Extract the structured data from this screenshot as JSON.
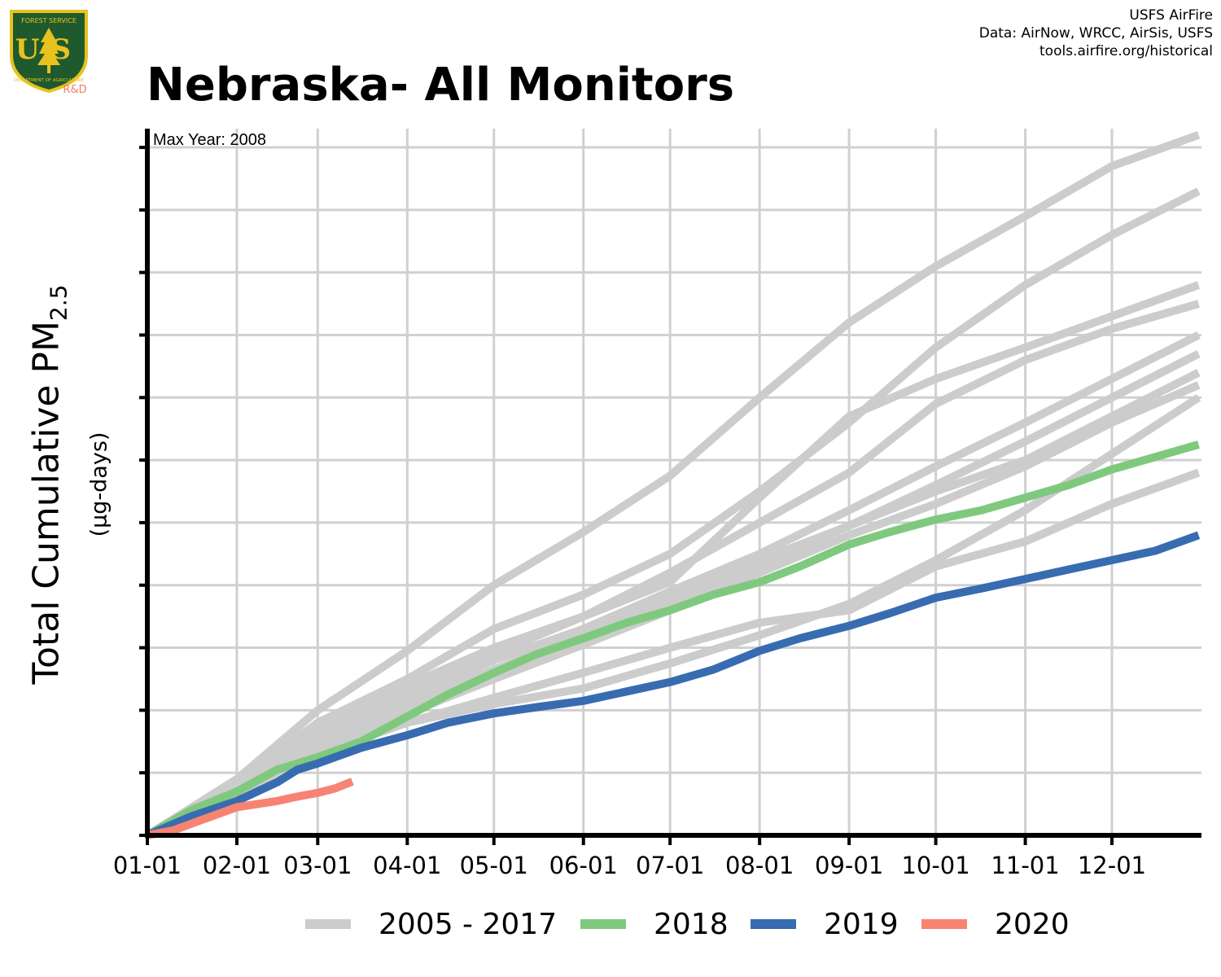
{
  "title": "Nebraska- All Monitors",
  "credits": [
    "USFS AirFire",
    "Data: AirNow, WRCC, AirSis, USFS",
    "tools.airfire.org/historical"
  ],
  "logo": {
    "text_top": "FOREST SERVICE",
    "letters": "US",
    "text_bottom": "DEPARTMENT OF AGRICULTURE",
    "suffix": "R&D",
    "colors": {
      "shield": "#1f5a2e",
      "border": "#e8c21e",
      "suffix": "#f47b65"
    }
  },
  "y_title": {
    "main_prefix": "Total Cumulative PM",
    "main_sub": "2.5",
    "unit": "(µg-days)"
  },
  "annotation": {
    "label": "Max Year: 2008"
  },
  "legend": [
    {
      "label": "2005 - 2017",
      "color": "#cccccc"
    },
    {
      "label": "2018",
      "color": "#7fc97f"
    },
    {
      "label": "2019",
      "color": "#386cb0"
    },
    {
      "label": "2020",
      "color": "#f88372"
    }
  ],
  "chart_data": {
    "type": "line",
    "xlabel": "",
    "ylabel": "Total Cumulative PM2.5 (µg-days)",
    "x_unit": "day of year",
    "xlim": [
      1,
      366
    ],
    "ylim": [
      0,
      11.3
    ],
    "x_ticks": [
      {
        "label": "01-01",
        "x": 1
      },
      {
        "label": "02-01",
        "x": 32
      },
      {
        "label": "03-01",
        "x": 60
      },
      {
        "label": "04-01",
        "x": 91
      },
      {
        "label": "05-01",
        "x": 121
      },
      {
        "label": "06-01",
        "x": 152
      },
      {
        "label": "07-01",
        "x": 182
      },
      {
        "label": "08-01",
        "x": 213
      },
      {
        "label": "09-01",
        "x": 244
      },
      {
        "label": "10-01",
        "x": 274
      },
      {
        "label": "11-01",
        "x": 305
      },
      {
        "label": "12-01",
        "x": 335
      }
    ],
    "y_ticks": [
      0,
      1,
      2,
      3,
      4,
      5,
      6,
      7,
      8,
      9,
      10,
      11
    ],
    "y_tick_labels_shown": false,
    "grid": true,
    "legend_position": "bottom",
    "series": [
      {
        "name": "2005 - 2017",
        "group": "historical",
        "color": "#cccccc",
        "points": [
          [
            1,
            0
          ],
          [
            32,
            0.9
          ],
          [
            60,
            2.0
          ],
          [
            91,
            2.95
          ],
          [
            121,
            4.0
          ],
          [
            152,
            4.85
          ],
          [
            182,
            5.75
          ],
          [
            213,
            7.0
          ],
          [
            244,
            8.2
          ],
          [
            274,
            9.1
          ],
          [
            305,
            9.9
          ],
          [
            335,
            10.7
          ],
          [
            365,
            11.2
          ]
        ]
      },
      {
        "name": "2005 - 2017",
        "group": "historical",
        "color": "#cccccc",
        "points": [
          [
            1,
            0
          ],
          [
            32,
            0.85
          ],
          [
            60,
            1.8
          ],
          [
            91,
            2.5
          ],
          [
            121,
            3.3
          ],
          [
            152,
            3.85
          ],
          [
            182,
            4.5
          ],
          [
            213,
            5.5
          ],
          [
            244,
            6.6
          ],
          [
            274,
            7.8
          ],
          [
            305,
            8.8
          ],
          [
            335,
            9.6
          ],
          [
            365,
            10.3
          ]
        ]
      },
      {
        "name": "2005 - 2017",
        "group": "historical",
        "color": "#cccccc",
        "points": [
          [
            1,
            0
          ],
          [
            32,
            0.85
          ],
          [
            60,
            1.7
          ],
          [
            91,
            2.4
          ],
          [
            121,
            3.0
          ],
          [
            152,
            3.5
          ],
          [
            182,
            4.05
          ],
          [
            213,
            5.4
          ],
          [
            244,
            6.7
          ],
          [
            274,
            7.3
          ],
          [
            305,
            7.8
          ],
          [
            335,
            8.3
          ],
          [
            365,
            8.8
          ]
        ]
      },
      {
        "name": "2005 - 2017",
        "group": "historical",
        "color": "#cccccc",
        "points": [
          [
            1,
            0
          ],
          [
            32,
            0.85
          ],
          [
            60,
            1.65
          ],
          [
            91,
            2.3
          ],
          [
            121,
            2.9
          ],
          [
            152,
            3.5
          ],
          [
            182,
            4.2
          ],
          [
            213,
            5.0
          ],
          [
            244,
            5.8
          ],
          [
            274,
            6.9
          ],
          [
            305,
            7.6
          ],
          [
            335,
            8.1
          ],
          [
            365,
            8.5
          ]
        ]
      },
      {
        "name": "2005 - 2017",
        "group": "historical",
        "color": "#cccccc",
        "points": [
          [
            1,
            0
          ],
          [
            32,
            0.8
          ],
          [
            60,
            1.6
          ],
          [
            91,
            2.2
          ],
          [
            121,
            2.8
          ],
          [
            152,
            3.3
          ],
          [
            182,
            3.9
          ],
          [
            213,
            4.5
          ],
          [
            244,
            5.2
          ],
          [
            274,
            5.9
          ],
          [
            305,
            6.6
          ],
          [
            335,
            7.3
          ],
          [
            365,
            8.0
          ]
        ]
      },
      {
        "name": "2005 - 2017",
        "group": "historical",
        "color": "#cccccc",
        "points": [
          [
            1,
            0
          ],
          [
            32,
            0.8
          ],
          [
            60,
            1.55
          ],
          [
            91,
            2.1
          ],
          [
            121,
            2.65
          ],
          [
            152,
            3.2
          ],
          [
            182,
            3.8
          ],
          [
            213,
            4.4
          ],
          [
            244,
            4.95
          ],
          [
            274,
            5.6
          ],
          [
            305,
            6.3
          ],
          [
            335,
            7.0
          ],
          [
            365,
            7.7
          ]
        ]
      },
      {
        "name": "2005 - 2017",
        "group": "historical",
        "color": "#cccccc",
        "points": [
          [
            1,
            0
          ],
          [
            32,
            0.7
          ],
          [
            60,
            1.45
          ],
          [
            91,
            2.05
          ],
          [
            121,
            2.6
          ],
          [
            152,
            3.15
          ],
          [
            182,
            3.7
          ],
          [
            213,
            4.3
          ],
          [
            244,
            4.95
          ],
          [
            274,
            5.5
          ],
          [
            305,
            6.0
          ],
          [
            335,
            6.7
          ],
          [
            365,
            7.4
          ]
        ]
      },
      {
        "name": "2005 - 2017",
        "group": "historical",
        "color": "#cccccc",
        "points": [
          [
            1,
            0
          ],
          [
            32,
            0.7
          ],
          [
            60,
            1.4
          ],
          [
            91,
            1.95
          ],
          [
            121,
            2.5
          ],
          [
            152,
            3.05
          ],
          [
            182,
            3.6
          ],
          [
            213,
            4.2
          ],
          [
            244,
            4.8
          ],
          [
            274,
            5.3
          ],
          [
            305,
            5.9
          ],
          [
            335,
            6.6
          ],
          [
            365,
            7.2
          ]
        ]
      },
      {
        "name": "2005 - 2017",
        "group": "historical",
        "color": "#cccccc",
        "points": [
          [
            1,
            0
          ],
          [
            32,
            0.65
          ],
          [
            60,
            1.3
          ],
          [
            91,
            1.8
          ],
          [
            121,
            2.2
          ],
          [
            152,
            2.6
          ],
          [
            182,
            3.0
          ],
          [
            213,
            3.4
          ],
          [
            244,
            3.6
          ],
          [
            274,
            4.3
          ],
          [
            305,
            4.7
          ],
          [
            335,
            5.3
          ],
          [
            365,
            5.8
          ]
        ]
      },
      {
        "name": "2005 - 2017",
        "group": "historical",
        "color": "#cccccc",
        "points": [
          [
            1,
            0
          ],
          [
            32,
            0.7
          ],
          [
            60,
            1.35
          ],
          [
            91,
            1.8
          ],
          [
            121,
            2.1
          ],
          [
            152,
            2.35
          ],
          [
            182,
            2.75
          ],
          [
            213,
            3.2
          ],
          [
            244,
            3.7
          ],
          [
            274,
            4.4
          ],
          [
            305,
            5.2
          ],
          [
            335,
            6.1
          ],
          [
            365,
            7.0
          ]
        ]
      },
      {
        "name": "2018",
        "group": "current",
        "color": "#7fc97f",
        "points": [
          [
            1,
            0
          ],
          [
            16,
            0.4
          ],
          [
            32,
            0.7
          ],
          [
            46,
            1.05
          ],
          [
            60,
            1.25
          ],
          [
            75,
            1.5
          ],
          [
            91,
            1.9
          ],
          [
            105,
            2.25
          ],
          [
            121,
            2.6
          ],
          [
            136,
            2.9
          ],
          [
            152,
            3.15
          ],
          [
            167,
            3.4
          ],
          [
            182,
            3.6
          ],
          [
            197,
            3.85
          ],
          [
            213,
            4.05
          ],
          [
            227,
            4.3
          ],
          [
            244,
            4.65
          ],
          [
            258,
            4.85
          ],
          [
            274,
            5.05
          ],
          [
            290,
            5.2
          ],
          [
            305,
            5.4
          ],
          [
            320,
            5.6
          ],
          [
            335,
            5.85
          ],
          [
            350,
            6.05
          ],
          [
            365,
            6.25
          ]
        ]
      },
      {
        "name": "2019",
        "group": "current",
        "color": "#386cb0",
        "points": [
          [
            1,
            0
          ],
          [
            16,
            0.3
          ],
          [
            32,
            0.55
          ],
          [
            46,
            0.85
          ],
          [
            53,
            1.05
          ],
          [
            60,
            1.15
          ],
          [
            75,
            1.4
          ],
          [
            91,
            1.6
          ],
          [
            105,
            1.8
          ],
          [
            121,
            1.95
          ],
          [
            136,
            2.05
          ],
          [
            152,
            2.15
          ],
          [
            167,
            2.3
          ],
          [
            182,
            2.45
          ],
          [
            197,
            2.65
          ],
          [
            213,
            2.95
          ],
          [
            227,
            3.15
          ],
          [
            244,
            3.35
          ],
          [
            258,
            3.55
          ],
          [
            274,
            3.8
          ],
          [
            290,
            3.95
          ],
          [
            305,
            4.1
          ],
          [
            320,
            4.25
          ],
          [
            335,
            4.4
          ],
          [
            350,
            4.55
          ],
          [
            365,
            4.8
          ]
        ]
      },
      {
        "name": "2020",
        "group": "current",
        "color": "#f88372",
        "points": [
          [
            1,
            0
          ],
          [
            10,
            0.08
          ],
          [
            20,
            0.25
          ],
          [
            32,
            0.45
          ],
          [
            46,
            0.55
          ],
          [
            53,
            0.62
          ],
          [
            60,
            0.68
          ],
          [
            66,
            0.75
          ],
          [
            72,
            0.86
          ]
        ]
      }
    ]
  }
}
